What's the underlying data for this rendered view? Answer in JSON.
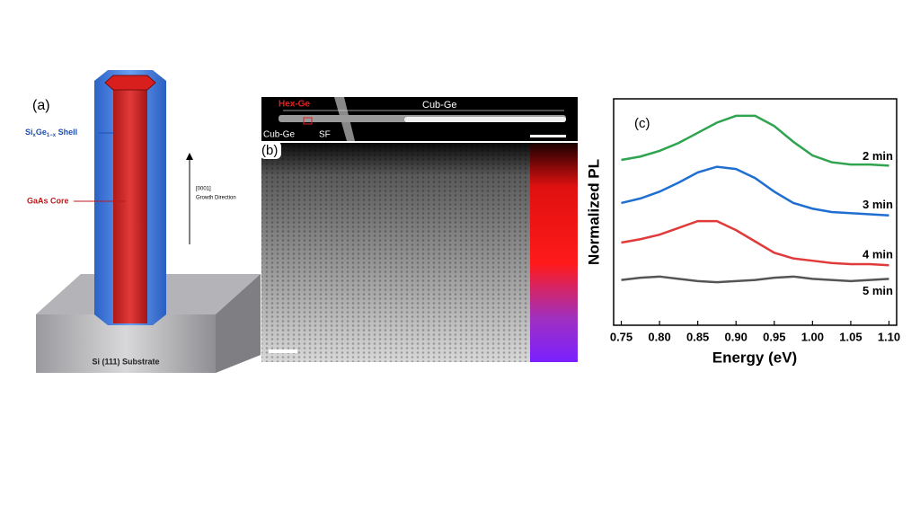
{
  "panel_a": {
    "label": "(a)",
    "shell_label": {
      "base": "Si",
      "sub1": "x",
      "mid": "Ge",
      "sub2": "1−x",
      "end": " Shell"
    },
    "core_label": "GaAs Core",
    "direction": "[0001]",
    "direction_caption": "Growth Direction",
    "substrate": "Si (111) Substrate"
  },
  "panel_b": {
    "label": "(b)",
    "hex": "Hex-Ge",
    "cub_top": "Cub-Ge",
    "cub_bottom": "Cub-Ge",
    "sf": "SF"
  },
  "chart_data": {
    "type": "line",
    "label": "(c)",
    "x_label": "Energy (eV)",
    "y_label": "Normalized PL",
    "x": [
      0.75,
      0.775,
      0.8,
      0.825,
      0.85,
      0.875,
      0.9,
      0.925,
      0.95,
      0.975,
      1.0,
      1.025,
      1.05,
      1.075,
      1.1
    ],
    "series": [
      {
        "name": "2 min",
        "color": "#2ea44f",
        "values": [
          73,
          74.5,
          77,
          80.5,
          85,
          89.5,
          92.5,
          92.5,
          88,
          81,
          75,
          72,
          71,
          71,
          70.5
        ]
      },
      {
        "name": "3 min",
        "color": "#1f6fd1",
        "values": [
          54,
          56,
          59,
          63,
          67.5,
          70,
          69,
          65,
          59,
          54,
          51.5,
          50,
          49.5,
          49,
          48.5
        ]
      },
      {
        "name": "4 min",
        "color": "#e03a3a",
        "values": [
          36.5,
          38,
          40,
          43,
          46,
          46,
          42,
          37,
          32,
          29.5,
          28.5,
          27.5,
          27,
          27,
          26.5
        ]
      },
      {
        "name": "5 min",
        "color": "#555555",
        "values": [
          20,
          21,
          21.5,
          20.5,
          19.5,
          19,
          19.5,
          20,
          21,
          21.5,
          20.5,
          20,
          19.5,
          20,
          20.5
        ]
      }
    ],
    "xlim": [
      0.74,
      1.11
    ],
    "ylim": [
      0,
      100
    ],
    "xticks": [
      0.75,
      {
        "value": 0.8,
        "label": "0.80"
      },
      0.85,
      {
        "value": 0.9,
        "label": "0.90"
      },
      0.95,
      {
        "value": 1,
        "label": "1.00"
      },
      1.05,
      {
        "value": 1.1,
        "label": "1.10"
      }
    ]
  }
}
